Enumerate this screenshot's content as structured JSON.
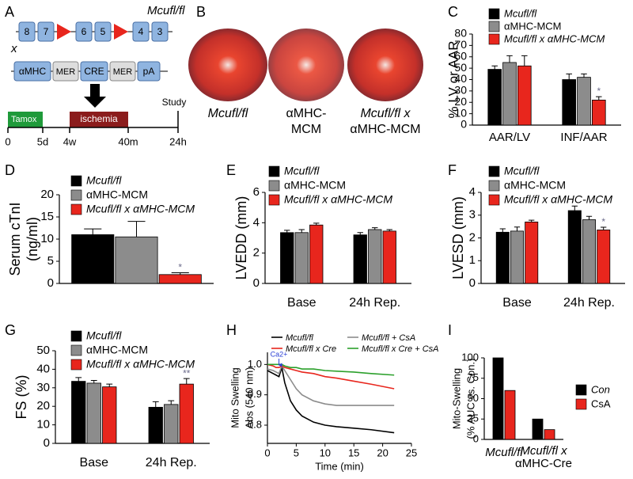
{
  "figure": {
    "panel_a": {
      "letter": "A",
      "title": "Mcufl/fl",
      "exons": [
        "8",
        "7",
        "6",
        "5",
        "4",
        "3"
      ],
      "cross": "x",
      "construct": [
        "αMHC",
        "MER",
        "CRE",
        "MER",
        "pA"
      ],
      "phases": [
        "Tamox",
        "ischemia"
      ],
      "end": "Study",
      "times": [
        "0",
        "5d",
        "4w",
        "40m",
        "24h"
      ]
    },
    "panel_b": {
      "letter": "B",
      "labels": [
        [
          "Mcufl/fl"
        ],
        [
          "αMHC-",
          "MCM"
        ],
        [
          "Mcufl/fl x",
          "αMHC-MCM"
        ]
      ]
    }
  },
  "chart_data": [
    {
      "type": "bar",
      "panel": "C",
      "ylabel": [
        "% LV or AAR"
      ],
      "categories": [
        "AAR/LV",
        "INF/AAR"
      ],
      "ylim": [
        0,
        80
      ],
      "yticks": [
        0,
        10,
        20,
        30,
        40,
        50,
        60,
        70,
        80
      ],
      "series": [
        {
          "name": "Mcufl/fl",
          "color": "#000000",
          "values": [
            49,
            40
          ],
          "errors": [
            3,
            5
          ]
        },
        {
          "name": "αMHC-MCM",
          "color": "#8c8c8c",
          "values": [
            55,
            42
          ],
          "errors": [
            6,
            3
          ]
        },
        {
          "name": "Mcufl/fl x αMHC-MCM",
          "color": "#e8261d",
          "values": [
            52,
            22
          ],
          "errors": [
            9,
            3
          ]
        }
      ],
      "annotations": [
        "*"
      ]
    },
    {
      "type": "bar",
      "panel": "D",
      "ylabel": [
        "Serum cTnI",
        "(ng/ml)"
      ],
      "categories": [
        null
      ],
      "ylim": [
        0,
        20
      ],
      "yticks": [
        0,
        5,
        10,
        15,
        20
      ],
      "series": [
        {
          "name": "Mcufl/fl",
          "color": "#000000",
          "values": [
            11
          ],
          "errors": [
            1.3
          ]
        },
        {
          "name": "αMHC-MCM",
          "color": "#8c8c8c",
          "values": [
            10.5
          ],
          "errors": [
            3.5
          ]
        },
        {
          "name": "Mcufl/fl x αMHC-MCM",
          "color": "#e8261d",
          "values": [
            2
          ],
          "errors": [
            0.4
          ]
        }
      ],
      "annotations": [
        "*"
      ]
    },
    {
      "type": "bar",
      "panel": "E",
      "ylabel": [
        "LVEDD (mm)"
      ],
      "categories": [
        "Base",
        "24h Rep."
      ],
      "ylim": [
        0,
        6
      ],
      "yticks": [
        0,
        2,
        4,
        6
      ],
      "series": [
        {
          "name": "Mcufl/fl",
          "color": "#000000",
          "values": [
            3.35,
            3.2
          ],
          "errors": [
            0.15,
            0.15
          ]
        },
        {
          "name": "αMHC-MCM",
          "color": "#8c8c8c",
          "values": [
            3.35,
            3.55
          ],
          "errors": [
            0.2,
            0.12
          ]
        },
        {
          "name": "Mcufl/fl x αMHC-MCM",
          "color": "#e8261d",
          "values": [
            3.85,
            3.45
          ],
          "errors": [
            0.12,
            0.1
          ]
        }
      ],
      "annotations": []
    },
    {
      "type": "bar",
      "panel": "F",
      "ylabel": [
        "LVESD (mm)"
      ],
      "categories": [
        "Base",
        "24h Rep."
      ],
      "ylim": [
        0,
        4
      ],
      "yticks": [
        0,
        1,
        2,
        3,
        4
      ],
      "series": [
        {
          "name": "Mcufl/fl",
          "color": "#000000",
          "values": [
            2.25,
            3.2
          ],
          "errors": [
            0.15,
            0.2
          ]
        },
        {
          "name": "αMHC-MCM",
          "color": "#8c8c8c",
          "values": [
            2.3,
            2.8
          ],
          "errors": [
            0.18,
            0.15
          ]
        },
        {
          "name": "Mcufl/fl x αMHC-MCM",
          "color": "#e8261d",
          "values": [
            2.7,
            2.35
          ],
          "errors": [
            0.08,
            0.12
          ]
        }
      ],
      "annotations": [
        "*"
      ]
    },
    {
      "type": "bar",
      "panel": "G",
      "ylabel": [
        "FS (%)"
      ],
      "categories": [
        "Base",
        "24h Rep."
      ],
      "ylim": [
        0,
        50
      ],
      "yticks": [
        0,
        10,
        20,
        30,
        40,
        50
      ],
      "series": [
        {
          "name": "Mcufl/fl",
          "color": "#000000",
          "values": [
            33.5,
            19.5
          ],
          "errors": [
            2,
            3
          ]
        },
        {
          "name": "αMHC-MCM",
          "color": "#8c8c8c",
          "values": [
            32.5,
            21
          ],
          "errors": [
            1.5,
            2
          ]
        },
        {
          "name": "Mcufl/fl x αMHC-MCM",
          "color": "#e8261d",
          "values": [
            30.5,
            32
          ],
          "errors": [
            1.5,
            3
          ]
        }
      ],
      "annotations": [
        "**"
      ]
    },
    {
      "type": "line",
      "panel": "H",
      "ylabel": [
        "Mito Swelling",
        "Abs (540 nm)"
      ],
      "xlabel": "Time (min)",
      "xlim": [
        0,
        25
      ],
      "xticks": [
        0,
        5,
        10,
        15,
        20,
        25
      ],
      "ylim": [
        0.74,
        1.04
      ],
      "yticks": [
        0.8,
        0.9,
        {
          "value": 1,
          "label": "1.0"
        }
      ],
      "x": [
        0,
        1,
        1.5,
        2,
        2.5,
        3,
        4,
        5,
        6,
        8,
        10,
        12,
        15,
        18,
        22
      ],
      "series": [
        {
          "name": "Mcufl/fl",
          "color": "#000000",
          "values": [
            0.98,
            0.97,
            0.965,
            0.96,
            0.99,
            0.94,
            0.88,
            0.85,
            0.83,
            0.81,
            0.8,
            0.795,
            0.79,
            0.785,
            0.775
          ]
        },
        {
          "name": "Mcufl/fl + CsA",
          "color": "#8c8c8c",
          "values": [
            0.985,
            0.98,
            0.975,
            0.97,
            0.995,
            0.98,
            0.95,
            0.92,
            0.9,
            0.88,
            0.87,
            0.865,
            0.865,
            0.865,
            0.865
          ]
        },
        {
          "name": "Mcufl/fl x Cre",
          "color": "#e8261d",
          "values": [
            1.0,
            0.995,
            0.99,
            0.99,
            0.995,
            0.99,
            0.985,
            0.98,
            0.975,
            0.97,
            0.96,
            0.955,
            0.945,
            0.935,
            0.92
          ]
        },
        {
          "name": "Mcufl/fl x Cre + CsA",
          "color": "#2ca02c",
          "values": [
            1.0,
            1.0,
            1.0,
            1.0,
            1.0,
            0.995,
            0.99,
            0.99,
            0.985,
            0.985,
            0.98,
            0.978,
            0.975,
            0.97,
            0.965
          ]
        }
      ],
      "annotations": [
        {
          "text": "Ca2+",
          "x": 2
        }
      ]
    },
    {
      "type": "bar",
      "panel": "I",
      "ylabel": [
        "Mito-Swelling",
        "(% AUC vs. Con.)"
      ],
      "categories": [
        [
          "Mcufl/fl"
        ],
        [
          "Mcufl/fl x",
          "αMHC-Cre"
        ]
      ],
      "ylim": [
        0,
        100
      ],
      "yticks": [
        0,
        25,
        50,
        75,
        100
      ],
      "series": [
        {
          "name": "Con",
          "color": "#000000",
          "values": [
            100,
            25
          ]
        },
        {
          "name": "CsA",
          "color": "#e8261d",
          "values": [
            60,
            12
          ]
        }
      ],
      "annotations": []
    }
  ]
}
